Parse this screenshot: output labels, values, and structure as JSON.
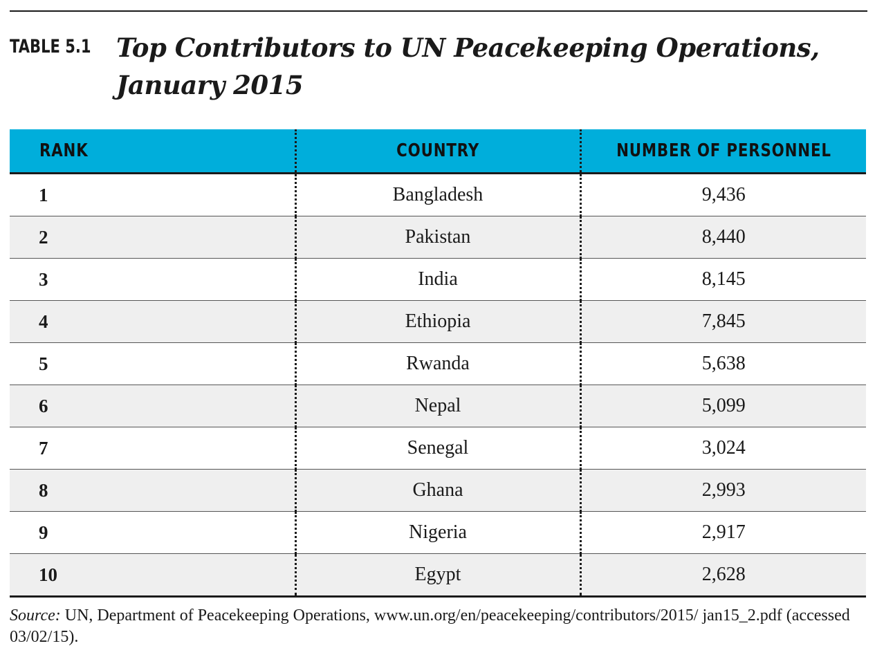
{
  "header": {
    "table_label": "TABLE 5.1",
    "title": "Top Contributors to UN Peacekeeping Operations, January 2015"
  },
  "table": {
    "columns": [
      "RANK",
      "COUNTRY",
      "NUMBER OF PERSONNEL"
    ],
    "rows": [
      {
        "rank": "1",
        "country": "Bangladesh",
        "personnel": "9,436"
      },
      {
        "rank": "2",
        "country": "Pakistan",
        "personnel": "8,440"
      },
      {
        "rank": "3",
        "country": "India",
        "personnel": "8,145"
      },
      {
        "rank": "4",
        "country": "Ethiopia",
        "personnel": "7,845"
      },
      {
        "rank": "5",
        "country": "Rwanda",
        "personnel": "5,638"
      },
      {
        "rank": "6",
        "country": "Nepal",
        "personnel": "5,099"
      },
      {
        "rank": "7",
        "country": "Senegal",
        "personnel": "3,024"
      },
      {
        "rank": "8",
        "country": "Ghana",
        "personnel": "2,993"
      },
      {
        "rank": "9",
        "country": "Nigeria",
        "personnel": "2,917"
      },
      {
        "rank": "10",
        "country": "Egypt",
        "personnel": "2,628"
      }
    ]
  },
  "source": {
    "label": "Source:",
    "text": " UN, Department of Peacekeeping Operations, www.un.org/en/peacekeeping/contributors/2015/ jan15_2.pdf (accessed 03/02/15)."
  },
  "colors": {
    "header_band": "#00aedb",
    "zebra_row": "#efefef",
    "rule": "#1a1a1a"
  }
}
